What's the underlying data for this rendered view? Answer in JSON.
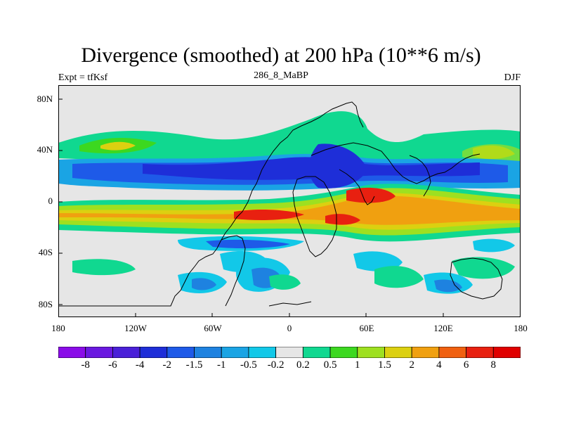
{
  "title": "Divergence (smoothed) at 200 hPa (10**6 m/s)",
  "left_label": "Expt = tfKsf",
  "center_label": "286_8_MaBP",
  "right_label": "DJF",
  "y_ticks": [
    "80N",
    "40N",
    "0",
    "40S",
    "80S"
  ],
  "x_ticks": [
    "180",
    "120W",
    "60W",
    "0",
    "60E",
    "120E",
    "180"
  ],
  "colorbar": {
    "labels": [
      "-8",
      "-6",
      "-4",
      "-2",
      "-1.5",
      "-1",
      "-0.5",
      "-0.2",
      "0.2",
      "0.5",
      "1",
      "1.5",
      "2",
      "4",
      "6",
      "8"
    ],
    "colors": [
      "#8a0ce8",
      "#6a18e0",
      "#4a20d8",
      "#1e2ed8",
      "#1e5ae8",
      "#1e82e0",
      "#1aa4e4",
      "#12c8e8",
      "#e6e6e6",
      "#10d890",
      "#3cd820",
      "#9ee020",
      "#dcd010",
      "#f0a010",
      "#f06010",
      "#e82010",
      "#e00000"
    ]
  },
  "colors": {
    "ocean_background": "#e6e6e6",
    "deep_blue": "#1e2ed8",
    "mid_blue": "#1e5ae8",
    "light_blue": "#1aa4e4",
    "cyan": "#12c8e8",
    "green": "#10d890",
    "lime": "#3cd820",
    "yellow": "#dcd010",
    "orange": "#f0a010",
    "red": "#e82010"
  }
}
